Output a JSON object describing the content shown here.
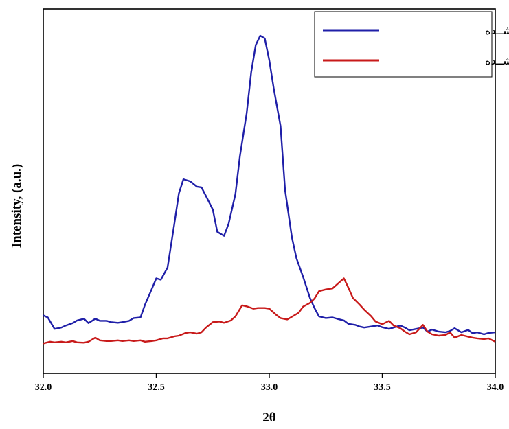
{
  "chart_data": {
    "type": "line",
    "xlabel": "2θ",
    "ylabel": "Intensity, (a.u.)",
    "xlim": [
      32.0,
      34.0
    ],
    "ylim": [
      0,
      1.0
    ],
    "x_ticks": [
      "32.0",
      "32.5",
      "33.0",
      "33.5",
      "34.0"
    ],
    "y_ticks_shown": false,
    "grid": false,
    "legend_position": "top-right",
    "series": [
      {
        "name": "آســیاشــده",
        "color": "#1f1fa8",
        "points": [
          [
            32.0,
            0.168
          ],
          [
            32.02,
            0.162
          ],
          [
            32.05,
            0.128
          ],
          [
            32.08,
            0.132
          ],
          [
            32.1,
            0.138
          ],
          [
            32.13,
            0.145
          ],
          [
            32.15,
            0.153
          ],
          [
            32.18,
            0.158
          ],
          [
            32.2,
            0.145
          ],
          [
            32.23,
            0.158
          ],
          [
            32.25,
            0.152
          ],
          [
            32.28,
            0.152
          ],
          [
            32.3,
            0.148
          ],
          [
            32.33,
            0.146
          ],
          [
            32.35,
            0.148
          ],
          [
            32.38,
            0.152
          ],
          [
            32.4,
            0.16
          ],
          [
            32.43,
            0.162
          ],
          [
            32.45,
            0.2
          ],
          [
            32.48,
            0.246
          ],
          [
            32.5,
            0.278
          ],
          [
            32.52,
            0.274
          ],
          [
            32.55,
            0.31
          ],
          [
            32.58,
            0.44
          ],
          [
            32.6,
            0.53
          ],
          [
            32.62,
            0.572
          ],
          [
            32.65,
            0.566
          ],
          [
            32.68,
            0.55
          ],
          [
            32.7,
            0.548
          ],
          [
            32.72,
            0.522
          ],
          [
            32.75,
            0.482
          ],
          [
            32.77,
            0.416
          ],
          [
            32.8,
            0.404
          ],
          [
            32.82,
            0.44
          ],
          [
            32.85,
            0.528
          ],
          [
            32.87,
            0.64
          ],
          [
            32.9,
            0.768
          ],
          [
            32.92,
            0.89
          ],
          [
            32.94,
            0.97
          ],
          [
            32.96,
            0.998
          ],
          [
            32.98,
            0.99
          ],
          [
            33.0,
            0.925
          ],
          [
            33.02,
            0.84
          ],
          [
            33.05,
            0.73
          ],
          [
            33.07,
            0.54
          ],
          [
            33.1,
            0.4
          ],
          [
            33.12,
            0.338
          ],
          [
            33.15,
            0.282
          ],
          [
            33.18,
            0.22
          ],
          [
            33.2,
            0.19
          ],
          [
            33.22,
            0.165
          ],
          [
            33.25,
            0.16
          ],
          [
            33.28,
            0.162
          ],
          [
            33.3,
            0.158
          ],
          [
            33.33,
            0.153
          ],
          [
            33.35,
            0.143
          ],
          [
            33.38,
            0.14
          ],
          [
            33.4,
            0.135
          ],
          [
            33.42,
            0.132
          ],
          [
            33.45,
            0.135
          ],
          [
            33.48,
            0.138
          ],
          [
            33.5,
            0.133
          ],
          [
            33.53,
            0.128
          ],
          [
            33.55,
            0.132
          ],
          [
            33.58,
            0.138
          ],
          [
            33.6,
            0.132
          ],
          [
            33.62,
            0.124
          ],
          [
            33.65,
            0.128
          ],
          [
            33.68,
            0.132
          ],
          [
            33.7,
            0.12
          ],
          [
            33.72,
            0.126
          ],
          [
            33.75,
            0.12
          ],
          [
            33.78,
            0.118
          ],
          [
            33.8,
            0.122
          ],
          [
            33.82,
            0.13
          ],
          [
            33.85,
            0.118
          ],
          [
            33.88,
            0.125
          ],
          [
            33.9,
            0.115
          ],
          [
            33.92,
            0.118
          ],
          [
            33.95,
            0.112
          ],
          [
            33.97,
            0.116
          ],
          [
            34.0,
            0.118
          ]
        ]
      },
      {
        "name": "تفجوشــی شــده",
        "color": "#c81a1a",
        "points": [
          [
            32.0,
            0.085
          ],
          [
            32.03,
            0.09
          ],
          [
            32.05,
            0.088
          ],
          [
            32.08,
            0.09
          ],
          [
            32.1,
            0.088
          ],
          [
            32.13,
            0.092
          ],
          [
            32.15,
            0.088
          ],
          [
            32.18,
            0.087
          ],
          [
            32.2,
            0.09
          ],
          [
            32.23,
            0.102
          ],
          [
            32.25,
            0.094
          ],
          [
            32.28,
            0.092
          ],
          [
            32.3,
            0.092
          ],
          [
            32.33,
            0.094
          ],
          [
            32.35,
            0.092
          ],
          [
            32.38,
            0.094
          ],
          [
            32.4,
            0.092
          ],
          [
            32.43,
            0.094
          ],
          [
            32.45,
            0.09
          ],
          [
            32.48,
            0.092
          ],
          [
            32.5,
            0.094
          ],
          [
            32.53,
            0.1
          ],
          [
            32.55,
            0.1
          ],
          [
            32.58,
            0.106
          ],
          [
            32.6,
            0.108
          ],
          [
            32.63,
            0.116
          ],
          [
            32.65,
            0.118
          ],
          [
            32.68,
            0.114
          ],
          [
            32.7,
            0.118
          ],
          [
            32.72,
            0.132
          ],
          [
            32.75,
            0.148
          ],
          [
            32.78,
            0.15
          ],
          [
            32.8,
            0.146
          ],
          [
            32.83,
            0.153
          ],
          [
            32.85,
            0.165
          ],
          [
            32.88,
            0.198
          ],
          [
            32.9,
            0.195
          ],
          [
            32.93,
            0.188
          ],
          [
            32.95,
            0.19
          ],
          [
            32.98,
            0.19
          ],
          [
            33.0,
            0.188
          ],
          [
            33.03,
            0.17
          ],
          [
            33.05,
            0.16
          ],
          [
            33.08,
            0.156
          ],
          [
            33.1,
            0.164
          ],
          [
            33.13,
            0.176
          ],
          [
            33.15,
            0.194
          ],
          [
            33.18,
            0.205
          ],
          [
            33.2,
            0.218
          ],
          [
            33.22,
            0.24
          ],
          [
            33.25,
            0.245
          ],
          [
            33.28,
            0.248
          ],
          [
            33.3,
            0.26
          ],
          [
            33.33,
            0.278
          ],
          [
            33.35,
            0.25
          ],
          [
            33.37,
            0.22
          ],
          [
            33.4,
            0.2
          ],
          [
            33.42,
            0.185
          ],
          [
            33.45,
            0.166
          ],
          [
            33.47,
            0.15
          ],
          [
            33.5,
            0.142
          ],
          [
            33.53,
            0.152
          ],
          [
            33.55,
            0.138
          ],
          [
            33.58,
            0.13
          ],
          [
            33.6,
            0.12
          ],
          [
            33.62,
            0.112
          ],
          [
            33.65,
            0.118
          ],
          [
            33.68,
            0.14
          ],
          [
            33.7,
            0.12
          ],
          [
            33.72,
            0.112
          ],
          [
            33.75,
            0.108
          ],
          [
            33.78,
            0.11
          ],
          [
            33.8,
            0.118
          ],
          [
            33.82,
            0.102
          ],
          [
            33.85,
            0.11
          ],
          [
            33.88,
            0.105
          ],
          [
            33.9,
            0.102
          ],
          [
            33.92,
            0.1
          ],
          [
            33.95,
            0.098
          ],
          [
            33.97,
            0.1
          ],
          [
            34.0,
            0.09
          ]
        ]
      }
    ]
  }
}
